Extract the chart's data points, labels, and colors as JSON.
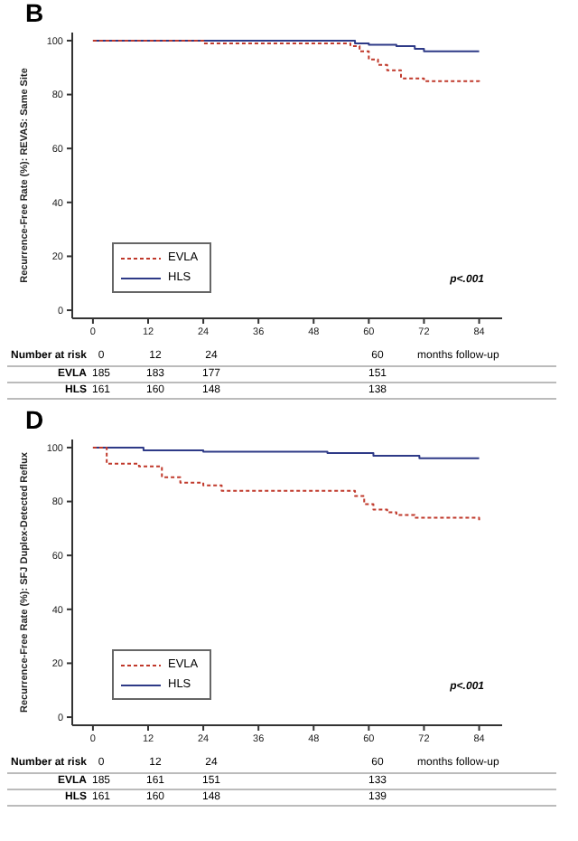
{
  "chart_data": [
    {
      "type": "step",
      "title": "B",
      "ylabel": "Recurrence-Free Rate (%): REVAS: Same Site",
      "xlim": [
        -4.5,
        89
      ],
      "ylim": [
        -3,
        103
      ],
      "xticks": [
        0,
        12,
        24,
        36,
        48,
        60,
        72,
        84
      ],
      "yticks": [
        0,
        20,
        40,
        60,
        80,
        100
      ],
      "legend": "bottom left",
      "grid": false,
      "series": [
        {
          "name": "EVLA",
          "color": "#c0392b",
          "line_style": "dashed",
          "x": [
            0,
            24,
            54,
            56,
            58,
            60,
            62,
            64,
            67,
            72,
            84
          ],
          "values": [
            100,
            99,
            99,
            98,
            96,
            93,
            91,
            89,
            86,
            85,
            84
          ]
        },
        {
          "name": "HLS",
          "color": "#2e3a87",
          "line_style": "solid",
          "x": [
            0,
            57,
            60,
            66,
            70,
            72,
            84
          ],
          "values": [
            100,
            99,
            98.5,
            98,
            97,
            96,
            96
          ]
        }
      ],
      "annotations": [
        "p<.001",
        "Number at risk",
        "0",
        "12",
        "24",
        "60",
        "months follow-up",
        "EVLA",
        "185",
        "183",
        "177",
        "151",
        "HLS",
        "161",
        "160",
        "148",
        "138"
      ]
    },
    {
      "type": "step",
      "title": "D",
      "ylabel": "Recurrence-Free Rate (%): SFJ Duplex-Detected Reflux",
      "xlim": [
        -4.5,
        89
      ],
      "ylim": [
        -3,
        103
      ],
      "xticks": [
        0,
        12,
        24,
        36,
        48,
        60,
        72,
        84
      ],
      "yticks": [
        0,
        20,
        40,
        60,
        80,
        100
      ],
      "legend": "bottom left",
      "grid": false,
      "series": [
        {
          "name": "EVLA",
          "color": "#c0392b",
          "line_style": "dashed",
          "x": [
            0,
            3,
            10,
            15,
            19,
            24,
            28,
            54,
            57,
            59,
            61,
            64,
            66,
            70,
            84
          ],
          "values": [
            100,
            94,
            93,
            89,
            87,
            86,
            84,
            84,
            82,
            79,
            77,
            76,
            75,
            74,
            73
          ]
        },
        {
          "name": "HLS",
          "color": "#2e3a87",
          "line_style": "solid",
          "x": [
            0,
            11,
            24,
            51,
            61,
            71,
            84
          ],
          "values": [
            100,
            99,
            98.5,
            98,
            97,
            96,
            96
          ]
        }
      ],
      "annotations": [
        "p<.001",
        "Number at risk",
        "0",
        "12",
        "24",
        "60",
        "months follow-up",
        "EVLA",
        "185",
        "161",
        "151",
        "133",
        "HLS",
        "161",
        "160",
        "148",
        "139"
      ]
    }
  ]
}
